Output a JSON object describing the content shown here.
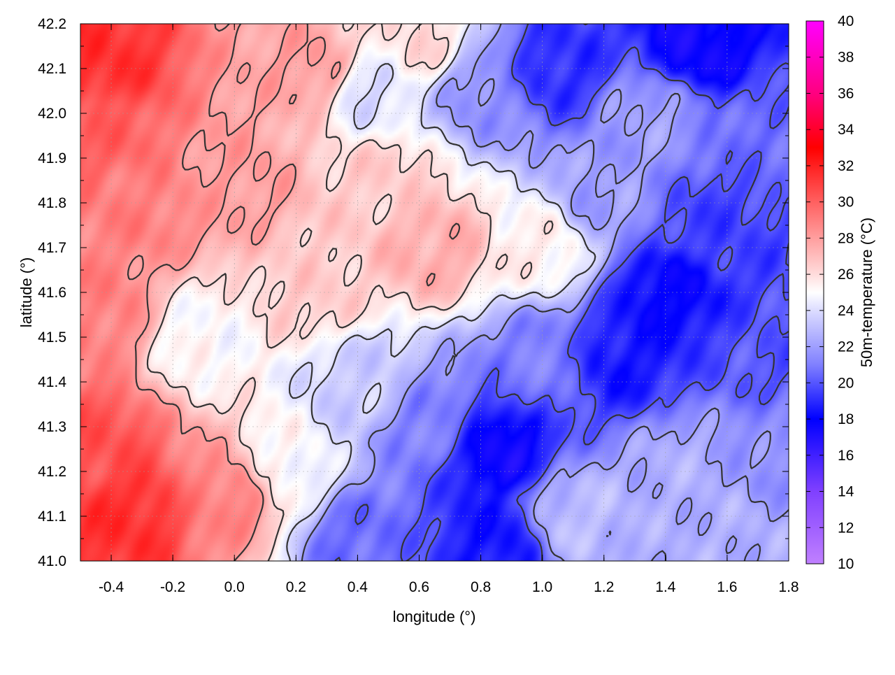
{
  "chart_data": {
    "type": "heatmap",
    "title": "",
    "xlabel": "longitude (°)",
    "ylabel": "latitude (°)",
    "colorbar_label": "50m-temperature (°C)",
    "xlim": [
      -0.5,
      1.8
    ],
    "ylim": [
      41.0,
      42.2
    ],
    "x_ticks": [
      -0.4,
      -0.2,
      0.0,
      0.2,
      0.4,
      0.6,
      0.8,
      1.0,
      1.2,
      1.4,
      1.6,
      1.8
    ],
    "x_tick_labels": [
      "-0.4",
      "-0.2",
      "0.0",
      "0.2",
      "0.4",
      "0.6",
      "0.8",
      "1.0",
      "1.2",
      "1.4",
      "1.6",
      "1.8"
    ],
    "y_ticks": [
      41.0,
      41.1,
      41.2,
      41.3,
      41.4,
      41.5,
      41.6,
      41.7,
      41.8,
      41.9,
      42.0,
      42.1,
      42.2
    ],
    "y_tick_labels": [
      "41.0",
      "41.1",
      "41.2",
      "41.3",
      "41.4",
      "41.5",
      "41.6",
      "41.7",
      "41.8",
      "41.9",
      "42.0",
      "42.1",
      "42.2"
    ],
    "colorbar_range": [
      10,
      40
    ],
    "colorbar_ticks": [
      10,
      12,
      14,
      16,
      18,
      20,
      22,
      24,
      26,
      28,
      30,
      32,
      34,
      36,
      38,
      40
    ],
    "colorbar_tick_labels": [
      "10",
      "12",
      "14",
      "16",
      "18",
      "20",
      "22",
      "24",
      "26",
      "28",
      "30",
      "32",
      "34",
      "36",
      "38",
      "40"
    ],
    "colormap_stops": [
      {
        "value": 10,
        "color": "#c080ff"
      },
      {
        "value": 14,
        "color": "#8040ff"
      },
      {
        "value": 18,
        "color": "#0000ff"
      },
      {
        "value": 21,
        "color": "#8080ff"
      },
      {
        "value": 24,
        "color": "#dcdcff"
      },
      {
        "value": 25,
        "color": "#ffffff"
      },
      {
        "value": 26,
        "color": "#ffdcdc"
      },
      {
        "value": 30,
        "color": "#ff6060"
      },
      {
        "value": 33,
        "color": "#ff0000"
      },
      {
        "value": 36,
        "color": "#ff0080"
      },
      {
        "value": 40,
        "color": "#ff00ff"
      }
    ],
    "grid": true,
    "temperature_field_anchors": [
      {
        "lon": -0.45,
        "lat": 42.12,
        "temp": 31.5
      },
      {
        "lon": -0.45,
        "lat": 41.95,
        "temp": 30.0
      },
      {
        "lon": -0.3,
        "lat": 41.8,
        "temp": 29.0
      },
      {
        "lon": -0.45,
        "lat": 41.55,
        "temp": 29.0
      },
      {
        "lon": -0.1,
        "lat": 41.5,
        "temp": 25.0
      },
      {
        "lon": -0.35,
        "lat": 41.1,
        "temp": 31.5
      },
      {
        "lon": -0.45,
        "lat": 41.25,
        "temp": 30.5
      },
      {
        "lon": 0.0,
        "lat": 41.15,
        "temp": 29.0
      },
      {
        "lon": 0.0,
        "lat": 41.85,
        "temp": 28.0
      },
      {
        "lon": 0.25,
        "lat": 42.1,
        "temp": 28.0
      },
      {
        "lon": 0.25,
        "lat": 41.6,
        "temp": 26.5
      },
      {
        "lon": 0.15,
        "lat": 41.2,
        "temp": 25.0
      },
      {
        "lon": 0.4,
        "lat": 41.05,
        "temp": 20.5
      },
      {
        "lon": 0.4,
        "lat": 41.4,
        "temp": 23.5
      },
      {
        "lon": 0.5,
        "lat": 41.85,
        "temp": 26.5
      },
      {
        "lon": 0.45,
        "lat": 42.05,
        "temp": 24.0
      },
      {
        "lon": 0.6,
        "lat": 42.15,
        "temp": 26.0
      },
      {
        "lon": 0.65,
        "lat": 41.7,
        "temp": 27.5
      },
      {
        "lon": 0.65,
        "lat": 41.3,
        "temp": 21.0
      },
      {
        "lon": 0.8,
        "lat": 42.05,
        "temp": 21.5
      },
      {
        "lon": 0.85,
        "lat": 41.25,
        "temp": 17.5
      },
      {
        "lon": 0.85,
        "lat": 41.05,
        "temp": 18.5
      },
      {
        "lon": 1.0,
        "lat": 41.7,
        "temp": 25.5
      },
      {
        "lon": 1.0,
        "lat": 41.45,
        "temp": 21.0
      },
      {
        "lon": 1.05,
        "lat": 42.1,
        "temp": 19.0
      },
      {
        "lon": 1.1,
        "lat": 41.1,
        "temp": 23.0
      },
      {
        "lon": 1.2,
        "lat": 41.8,
        "temp": 22.0
      },
      {
        "lon": 1.25,
        "lat": 41.45,
        "temp": 18.5
      },
      {
        "lon": 1.35,
        "lat": 42.0,
        "temp": 22.0
      },
      {
        "lon": 1.4,
        "lat": 41.6,
        "temp": 18.0
      },
      {
        "lon": 1.45,
        "lat": 41.2,
        "temp": 22.5
      },
      {
        "lon": 1.5,
        "lat": 42.15,
        "temp": 17.5
      },
      {
        "lon": 1.55,
        "lat": 41.75,
        "temp": 19.5
      },
      {
        "lon": 1.6,
        "lat": 41.05,
        "temp": 22.5
      },
      {
        "lon": 1.75,
        "lat": 41.45,
        "temp": 20.0
      },
      {
        "lon": 1.75,
        "lat": 41.95,
        "temp": 20.5
      },
      {
        "lon": 1.75,
        "lat": 41.25,
        "temp": 21.5
      }
    ]
  }
}
